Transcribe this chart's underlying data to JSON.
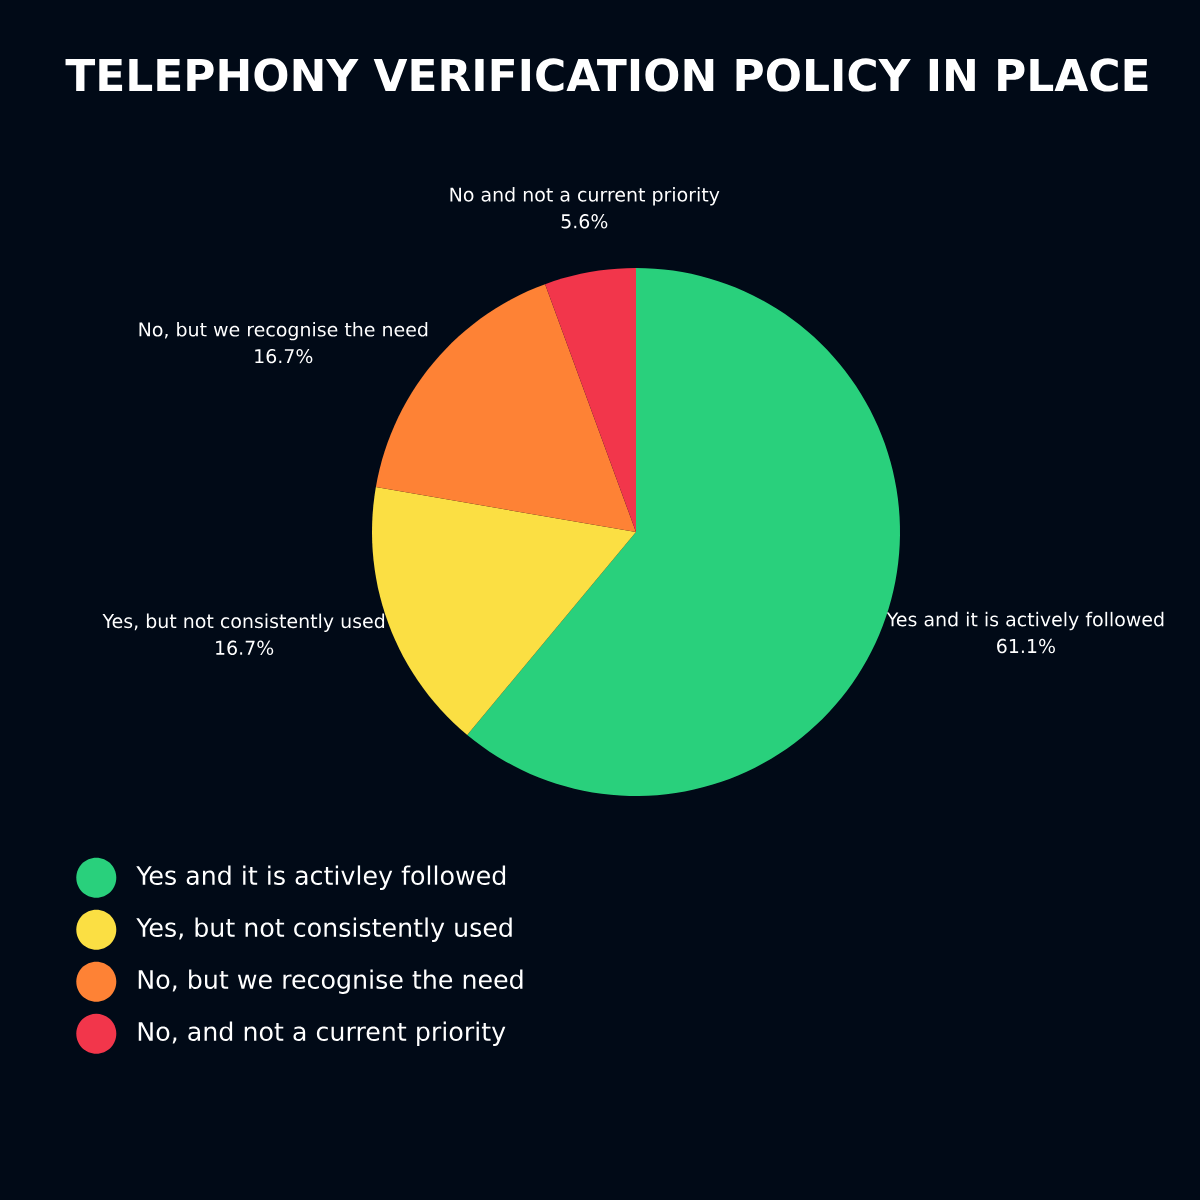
{
  "chart_data": {
    "type": "pie",
    "title": "TELEPHONY VERIFICATION POLICY IN PLACE",
    "categories": [
      "Yes and it is activley followed",
      "Yes, but not consistently used",
      "No, but we recognise the need",
      "No, and not a current priority"
    ],
    "values": [
      61.1,
      16.7,
      16.7,
      5.6
    ],
    "value_labels": [
      "61.1%",
      "16.7%",
      "16.7%",
      "5.6%"
    ],
    "colors": [
      "#29d07c",
      "#fbdf43",
      "#fe8235",
      "#f2364b"
    ],
    "legend": "bottom left",
    "annotations": [
      "Yes and it is actively followed",
      "Yes, but not consistently used",
      "No, but we recognise the need",
      "No and not a current priority"
    ]
  }
}
